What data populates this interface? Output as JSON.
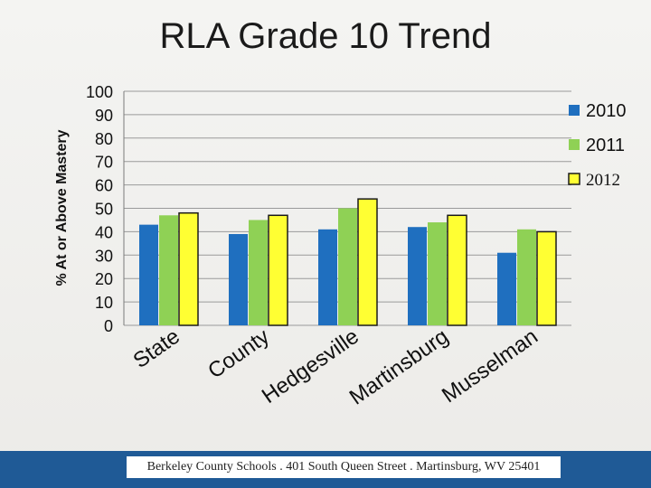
{
  "slide": {
    "title": "RLA Grade 10 Trend",
    "footer": "Berkeley County Schools . 401 South Queen Street . Martinsburg, WV  25401"
  },
  "chart_data": {
    "type": "bar",
    "title": "RLA Grade 10 Trend",
    "xlabel": "",
    "ylabel": "% At or Above Mastery",
    "ylim": [
      0,
      100
    ],
    "yticks": [
      0,
      10,
      20,
      30,
      40,
      50,
      60,
      70,
      80,
      90,
      100
    ],
    "grid": true,
    "legend": "right",
    "categories": [
      "State",
      "County",
      "Hedgesville",
      "Martinsburg",
      "Musselman"
    ],
    "series": [
      {
        "name": "2010",
        "color": "#1f6fbf",
        "values": [
          43,
          39,
          41,
          42,
          31
        ]
      },
      {
        "name": "2011",
        "color": "#8fd155",
        "values": [
          47,
          45,
          50,
          44,
          41
        ]
      },
      {
        "name": "2012",
        "color": "#ffff33",
        "values": [
          48,
          47,
          54,
          47,
          40
        ]
      }
    ]
  }
}
